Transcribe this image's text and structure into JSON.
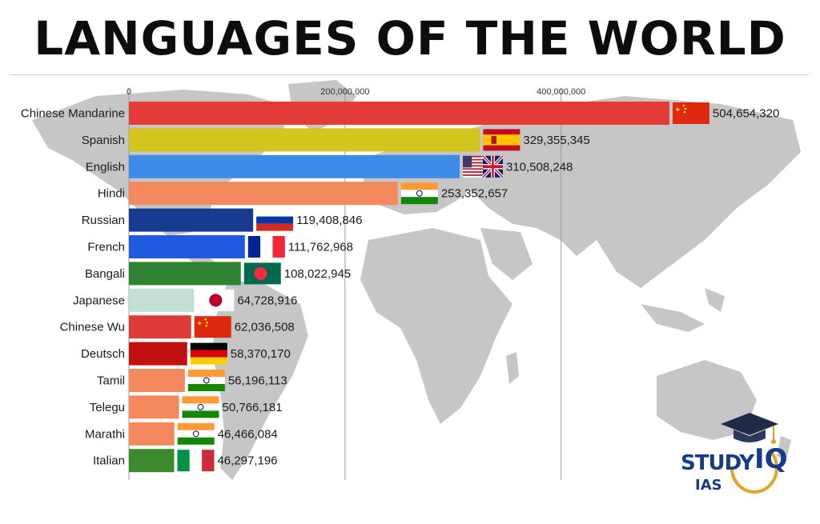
{
  "page": {
    "title": "LANGUAGES OF THE WORLD"
  },
  "logo": {
    "word1": "STUDY",
    "word2": "IQ",
    "word3": "IAS"
  },
  "chart_data": {
    "type": "bar",
    "orientation": "horizontal",
    "title": "LANGUAGES OF THE WORLD",
    "xlabel": "",
    "ylabel": "",
    "xlim": [
      0,
      544000000
    ],
    "ticks": [
      {
        "value": 0,
        "label": "0"
      },
      {
        "value": 200000000,
        "label": "200,000,000"
      },
      {
        "value": 400000000,
        "label": "400,000,000"
      }
    ],
    "grid": true,
    "categories": [
      "Chinese Mandarine",
      "Spanish",
      "English",
      "Hindi",
      "Russian",
      "French",
      "Bangali",
      "Japanese",
      "Chinese Wu",
      "Deutsch",
      "Tamil",
      "Telegu",
      "Marathi",
      "Italian"
    ],
    "values": [
      504654320,
      329355345,
      310508248,
      253352657,
      119408846,
      111762968,
      108022945,
      64728916,
      62036508,
      58370170,
      56196113,
      50766181,
      46466084,
      46297196
    ],
    "value_labels": [
      "504,654,320",
      "329,355,345",
      "310,508,248",
      "253,352,657",
      "119,408,846",
      "111,762,968",
      "108,022,945",
      "64,728,916",
      "62,036,508",
      "58,370,170",
      "56,196,113",
      "50,766,181",
      "46,466,084",
      "46,297,196"
    ],
    "colors": [
      "#e53b36",
      "#d4c51f",
      "#3d8ae8",
      "#f3895c",
      "#163b8f",
      "#1f5ae0",
      "#2e8231",
      "#bfe0d2",
      "#e03a36",
      "#c20f0f",
      "#f3895c",
      "#f3895c",
      "#f3895c",
      "#3b8a2c"
    ],
    "flags": [
      "china",
      "spain",
      "usa-uk",
      "india",
      "russia",
      "france",
      "bangladesh",
      "japan",
      "china",
      "germany",
      "india",
      "india",
      "india",
      "italy"
    ]
  }
}
